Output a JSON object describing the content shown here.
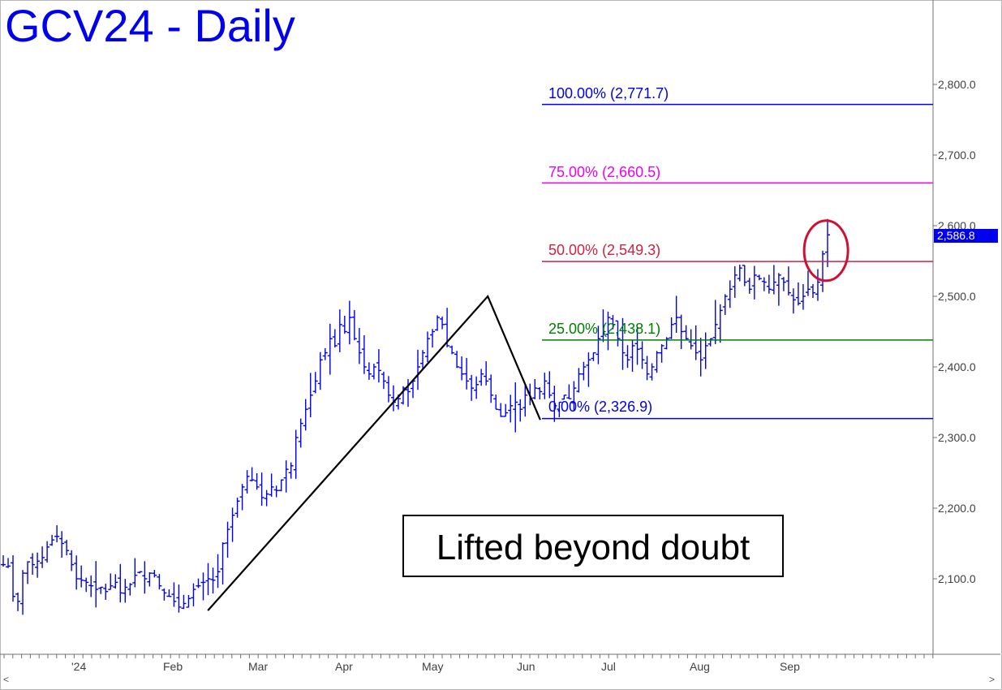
{
  "chart_data": {
    "type": "ohlc",
    "title": "GCV24 - Daily",
    "last_price": "2,586.8",
    "y_ticks": [
      "2,800.0",
      "2,700.0",
      "2,600.0",
      "2,500.0",
      "2,400.0",
      "2,300.0",
      "2,200.0",
      "2,100.0"
    ],
    "y_tick_values": [
      2800,
      2700,
      2600,
      2500,
      2400,
      2300,
      2200,
      2100
    ],
    "x_ticks": [
      "'24",
      "Feb",
      "Mar",
      "Apr",
      "May",
      "Jun",
      "Jul",
      "Aug",
      "Sep"
    ],
    "fib_levels": [
      {
        "label": "100.00% (2,771.7)",
        "value": 2771.7,
        "color": "#0000ee"
      },
      {
        "label": "75.00% (2,660.5)",
        "value": 2660.5,
        "color": "#ee00ee"
      },
      {
        "label": "50.00% (2,549.3)",
        "value": 2549.3,
        "color": "#cc2244"
      },
      {
        "label": "25.00% (2,438.1)",
        "value": 2438.1,
        "color": "#008000"
      },
      {
        "label": "0.00% (2,326.9)",
        "value": 2326.9,
        "color": "#0000ee"
      }
    ],
    "pattern_points": [
      {
        "date": "2024-02-14",
        "price": 2055
      },
      {
        "date": "2024-05-20",
        "price": 2500
      },
      {
        "date": "2024-06-07",
        "price": 2325
      }
    ],
    "annotation": "Lifted beyond doubt",
    "circle_point": {
      "date": "2024-09-13",
      "price": 2560
    },
    "closes": [
      2120,
      2118,
      2075,
      2068,
      2108,
      2124,
      2120,
      2125,
      2130,
      2145,
      2155,
      2160,
      2150,
      2140,
      2120,
      2100,
      2098,
      2095,
      2090,
      2085,
      2088,
      2082,
      2090,
      2095,
      2080,
      2088,
      2092,
      2105,
      2110,
      2100,
      2108,
      2105,
      2090,
      2080,
      2075,
      2068,
      2060,
      2065,
      2072,
      2085,
      2090,
      2095,
      2100,
      2098,
      2110,
      2150,
      2170,
      2190,
      2210,
      2230,
      2245,
      2240,
      2230,
      2215,
      2220,
      2230,
      2225,
      2240,
      2255,
      2260,
      2300,
      2320,
      2340,
      2360,
      2380,
      2410,
      2420,
      2440,
      2430,
      2460,
      2450,
      2470,
      2440,
      2420,
      2400,
      2390,
      2400,
      2395,
      2380,
      2360,
      2350,
      2355,
      2370,
      2365,
      2380,
      2400,
      2420,
      2440,
      2450,
      2470,
      2460,
      2430,
      2420,
      2400,
      2390,
      2380,
      2370,
      2375,
      2390,
      2380,
      2360,
      2340,
      2330,
      2335,
      2345,
      2350,
      2340,
      2360,
      2355,
      2370,
      2365,
      2380,
      2360,
      2345,
      2350,
      2360,
      2355,
      2370,
      2390,
      2400,
      2410,
      2420,
      2440,
      2450,
      2470,
      2460,
      2440,
      2420,
      2410,
      2430,
      2425,
      2410,
      2390,
      2400,
      2420,
      2430,
      2440,
      2460,
      2470,
      2450,
      2440,
      2430,
      2420,
      2410,
      2430,
      2440,
      2460,
      2480,
      2500,
      2510,
      2530,
      2540,
      2520,
      2510,
      2530,
      2525,
      2520,
      2510,
      2520,
      2530,
      2520,
      2505,
      2495,
      2490,
      2500,
      2510,
      2505,
      2520,
      2560,
      2587
    ]
  }
}
